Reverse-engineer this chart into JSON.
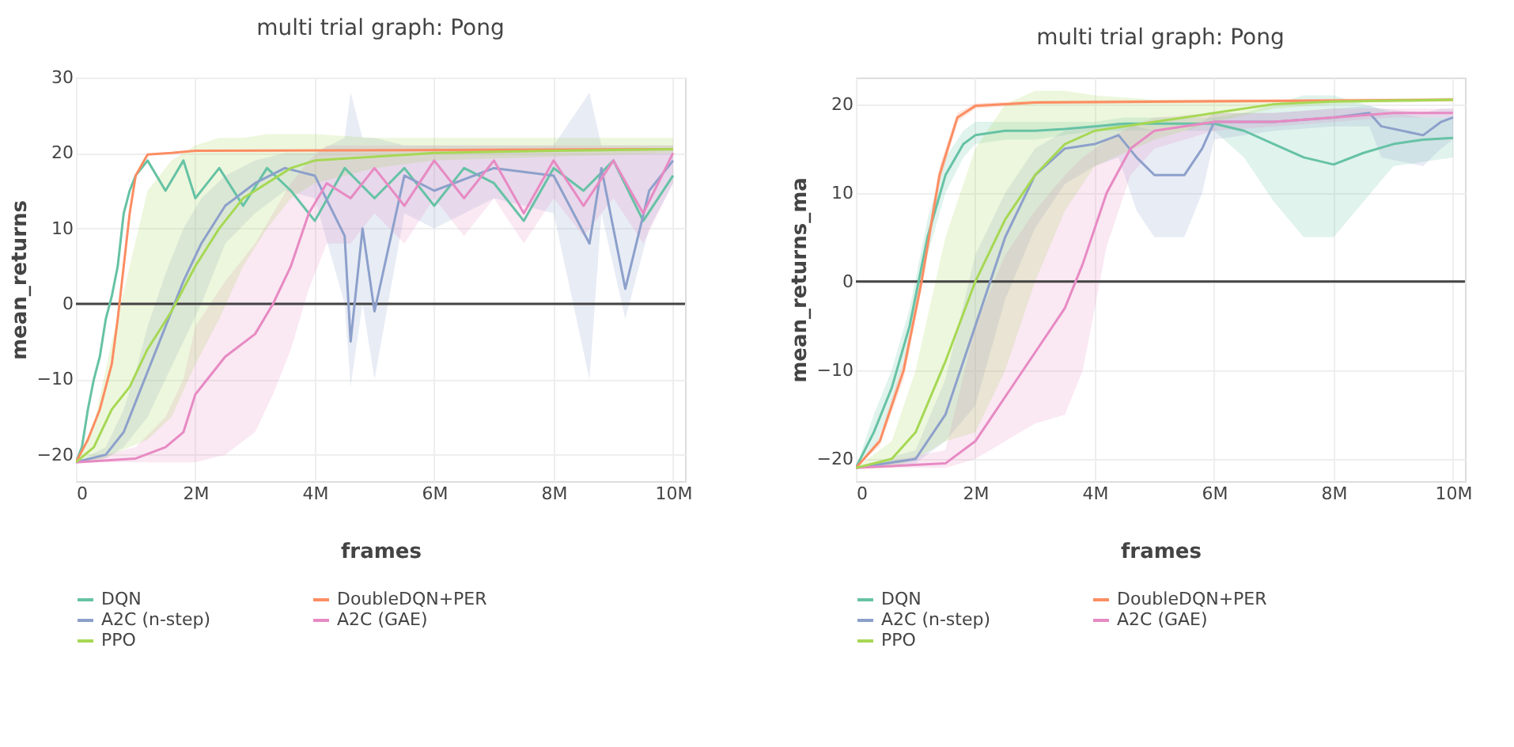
{
  "chart_data": [
    {
      "type": "line",
      "title": "multi trial graph: Pong",
      "xlabel": "frames",
      "ylabel": "mean_returns",
      "xlim": [
        0,
        10200000
      ],
      "xticks": [
        0,
        {
          "value": 2000000,
          "label": "2M"
        },
        {
          "value": 4000000,
          "label": "4M"
        },
        {
          "value": 6000000,
          "label": "6M"
        },
        {
          "value": 8000000,
          "label": "8M"
        },
        {
          "value": 10000000,
          "label": "10M"
        }
      ],
      "ylim": [
        -23.5,
        30
      ],
      "yticks": [
        -20,
        -10,
        0,
        10,
        20,
        30
      ],
      "grid": true,
      "legend": "bottom",
      "ref_lines": [
        {
          "axis": "y",
          "value": 0,
          "color": "#444444"
        }
      ],
      "series": [
        {
          "name": "DQN",
          "color": "#66c2a5",
          "x": [
            0,
            100000,
            200000,
            300000,
            400000,
            500000,
            600000,
            700000,
            800000,
            900000,
            1000000,
            1200000,
            1500000,
            1800000,
            2000000,
            2400000,
            2800000,
            3200000,
            3600000,
            4000000,
            4500000,
            5000000,
            5500000,
            6000000,
            6500000,
            7000000,
            7500000,
            8000000,
            8500000,
            9000000,
            9500000,
            10000000
          ],
          "values": [
            -21,
            -19,
            -14,
            -10,
            -7,
            -2,
            1,
            5,
            12,
            15,
            17,
            19,
            15,
            19,
            14,
            18,
            13,
            18,
            15,
            11,
            18,
            14,
            18,
            13,
            18,
            16,
            11,
            18,
            15,
            19,
            11,
            17
          ]
        },
        {
          "name": "DoubleDQN+PER",
          "color": "#fc8d62",
          "x": [
            0,
            200000,
            400000,
            600000,
            700000,
            800000,
            900000,
            1000000,
            1200000,
            1600000,
            2000000,
            10000000
          ],
          "values": [
            -21,
            -18,
            -14,
            -8,
            -2,
            5,
            12,
            17,
            19.8,
            20,
            20.3,
            20.5
          ]
        },
        {
          "name": "A2C (n-step)",
          "color": "#8da0cb",
          "x": [
            0,
            500000,
            800000,
            1000000,
            1200000,
            1500000,
            1800000,
            2100000,
            2500000,
            3000000,
            3500000,
            4000000,
            4500000,
            4600000,
            4800000,
            5000000,
            5500000,
            6000000,
            7000000,
            8000000,
            8600000,
            8800000,
            9200000,
            9600000,
            10000000
          ],
          "values": [
            -21,
            -20,
            -17,
            -13,
            -9,
            -3,
            3,
            8,
            13,
            16,
            18,
            17,
            9,
            -5,
            10,
            -1,
            17,
            15,
            18,
            17,
            8,
            18,
            2,
            15,
            19
          ],
          "lower": [
            -21,
            -20.5,
            -19,
            -17,
            -15,
            -10,
            -5,
            0,
            8,
            12,
            15,
            14,
            0,
            -11,
            0,
            -10,
            12,
            10,
            14,
            12,
            -10,
            12,
            -2,
            10,
            16
          ],
          "upper": [
            -21,
            -19,
            -14,
            -9,
            -3,
            4,
            10,
            14,
            17,
            19,
            20,
            20,
            22,
            28,
            22,
            22,
            21,
            21,
            21,
            21,
            28,
            21,
            21,
            21,
            21
          ]
        },
        {
          "name": "A2C (GAE)",
          "color": "#e78ac3",
          "x": [
            0,
            1000000,
            1500000,
            1800000,
            2000000,
            2500000,
            3000000,
            3300000,
            3600000,
            3900000,
            4200000,
            4600000,
            5000000,
            5500000,
            6000000,
            6500000,
            7000000,
            7500000,
            8000000,
            8500000,
            9000000,
            9500000,
            10000000
          ],
          "values": [
            -21,
            -20.5,
            -19,
            -17,
            -12,
            -7,
            -4,
            0,
            5,
            12,
            16,
            14,
            18,
            13,
            19,
            14,
            19,
            12,
            19,
            13,
            19,
            12,
            20
          ],
          "lower": [
            -21,
            -21,
            -21,
            -21,
            -21,
            -20,
            -17,
            -12,
            -6,
            2,
            8,
            8,
            12,
            8,
            14,
            9,
            14,
            8,
            14,
            9,
            14,
            8,
            16
          ],
          "upper": [
            -21,
            -19,
            -15,
            -10,
            -3,
            3,
            8,
            12,
            16,
            19,
            21,
            21,
            21,
            21,
            21,
            21,
            21,
            21,
            21,
            21,
            21,
            21,
            21
          ]
        },
        {
          "name": "PPO",
          "color": "#a6d854",
          "x": [
            0,
            300000,
            600000,
            900000,
            1200000,
            1600000,
            2000000,
            2400000,
            2800000,
            3200000,
            3600000,
            4000000,
            5000000,
            6000000,
            8000000,
            10000000
          ],
          "values": [
            -21,
            -19,
            -14,
            -11,
            -6,
            -1,
            5,
            10,
            14,
            16,
            18,
            19,
            19.5,
            20,
            20.3,
            20.5
          ],
          "lower": [
            -21,
            -21,
            -20,
            -19,
            -18,
            -15,
            -8,
            -2,
            5,
            10,
            14,
            16,
            18,
            19,
            19.5,
            20
          ],
          "upper": [
            -21,
            -16,
            -5,
            5,
            15,
            19,
            21,
            22,
            22,
            22.5,
            22.5,
            22.5,
            22,
            22,
            22,
            22
          ]
        }
      ]
    },
    {
      "type": "line",
      "title": "multi trial graph: Pong",
      "xlabel": "frames",
      "ylabel": "mean_returns_ma",
      "xlim": [
        0,
        10200000
      ],
      "xticks": [
        0,
        {
          "value": 2000000,
          "label": "2M"
        },
        {
          "value": 4000000,
          "label": "4M"
        },
        {
          "value": 6000000,
          "label": "6M"
        },
        {
          "value": 8000000,
          "label": "8M"
        },
        {
          "value": 10000000,
          "label": "10M"
        }
      ],
      "ylim": [
        -22.5,
        23
      ],
      "yticks": [
        -20,
        -10,
        0,
        10,
        20
      ],
      "grid": true,
      "legend": "bottom",
      "ref_lines": [
        {
          "axis": "y",
          "value": 0,
          "color": "#444444"
        }
      ],
      "series": [
        {
          "name": "DQN",
          "color": "#66c2a5",
          "x": [
            0,
            300000,
            600000,
            900000,
            1200000,
            1500000,
            1800000,
            2000000,
            2500000,
            3000000,
            3500000,
            4000000,
            4500000,
            5000000,
            5500000,
            6000000,
            6500000,
            7000000,
            7500000,
            8000000,
            8500000,
            9000000,
            9500000,
            10000000
          ],
          "values": [
            -21,
            -17,
            -12,
            -5,
            5,
            12,
            15.5,
            16.5,
            17,
            17,
            17.2,
            17.5,
            17.8,
            17.8,
            17.8,
            17.8,
            17,
            15.5,
            14,
            13.2,
            14.5,
            15.5,
            16,
            16.2
          ],
          "lower": [
            -21,
            -19,
            -14,
            -7,
            3,
            10,
            14,
            15.5,
            16,
            16,
            16.5,
            17,
            17,
            17,
            17,
            17,
            14,
            9,
            5,
            5,
            9,
            13,
            13.5,
            14
          ],
          "upper": [
            -21,
            -15,
            -10,
            -3,
            7,
            14,
            17,
            18,
            18,
            18,
            18,
            18,
            18.5,
            18.5,
            18.5,
            18.5,
            19,
            20,
            21,
            21,
            20,
            19,
            18.5,
            18.5
          ]
        },
        {
          "name": "DoubleDQN+PER",
          "color": "#fc8d62",
          "x": [
            0,
            400000,
            800000,
            1100000,
            1400000,
            1700000,
            2000000,
            3000000,
            10000000
          ],
          "values": [
            -21,
            -18,
            -10,
            0,
            12,
            18.5,
            19.8,
            20.2,
            20.5
          ],
          "lower": [
            -21,
            -18.5,
            -11,
            -1,
            11,
            18,
            19.5,
            20,
            20.3
          ],
          "upper": [
            -21,
            -17.5,
            -9,
            1,
            13,
            19,
            20.1,
            20.4,
            20.7
          ]
        },
        {
          "name": "A2C (n-step)",
          "color": "#8da0cb",
          "x": [
            0,
            1000000,
            1500000,
            2000000,
            2500000,
            3000000,
            3500000,
            4000000,
            4400000,
            4700000,
            5000000,
            5500000,
            5800000,
            6000000,
            7000000,
            8000000,
            8600000,
            8800000,
            9500000,
            9800000,
            10000000
          ],
          "values": [
            -21,
            -20,
            -15,
            -5,
            5,
            12,
            15,
            15.5,
            16.5,
            14,
            12,
            12,
            15,
            18,
            18,
            18.5,
            19,
            17.5,
            16.5,
            18,
            18.5
          ],
          "lower": [
            -21,
            -20.5,
            -18,
            -14,
            -2,
            6,
            11,
            13,
            14,
            8,
            5,
            5,
            10,
            16,
            17,
            17.5,
            17.5,
            14,
            13,
            15,
            16
          ],
          "upper": [
            -21,
            -19,
            -11,
            3,
            10,
            15,
            17,
            17.5,
            18,
            17.5,
            17,
            17,
            18,
            19,
            19,
            19.5,
            19.8,
            19.5,
            19,
            19.5,
            19.5
          ]
        },
        {
          "name": "A2C (GAE)",
          "color": "#e78ac3",
          "x": [
            0,
            1500000,
            2000000,
            2500000,
            3000000,
            3500000,
            3800000,
            4200000,
            4600000,
            5000000,
            6000000,
            7000000,
            8000000,
            9000000,
            10000000
          ],
          "values": [
            -21,
            -20.5,
            -18,
            -13,
            -8,
            -3,
            2,
            10,
            15,
            17,
            18,
            18,
            18.5,
            19,
            19
          ],
          "lower": [
            -21,
            -21,
            -20,
            -18,
            -16,
            -15,
            -10,
            4,
            12,
            15,
            17,
            17.5,
            18,
            18.5,
            18.5
          ],
          "upper": [
            -21,
            -19,
            -5,
            3,
            8,
            12,
            14,
            16,
            17.5,
            18.5,
            19,
            19,
            19.5,
            19.5,
            19.5
          ]
        },
        {
          "name": "PPO",
          "color": "#a6d854",
          "x": [
            0,
            600000,
            1000000,
            1500000,
            2000000,
            2500000,
            3000000,
            3500000,
            4000000,
            5000000,
            6000000,
            7000000,
            8000000,
            10000000
          ],
          "values": [
            -21,
            -20,
            -17,
            -9,
            0,
            7,
            12,
            15.5,
            17,
            18,
            19,
            20,
            20.3,
            20.5
          ],
          "lower": [
            -21,
            -21,
            -20,
            -18,
            -17,
            -10,
            0,
            8,
            13,
            16,
            18,
            19.5,
            20,
            20.3
          ],
          "upper": [
            -21,
            -18,
            -10,
            5,
            15,
            20,
            21.5,
            21.5,
            21,
            20.5,
            20.5,
            20.5,
            20.5,
            20.7
          ]
        }
      ]
    }
  ]
}
